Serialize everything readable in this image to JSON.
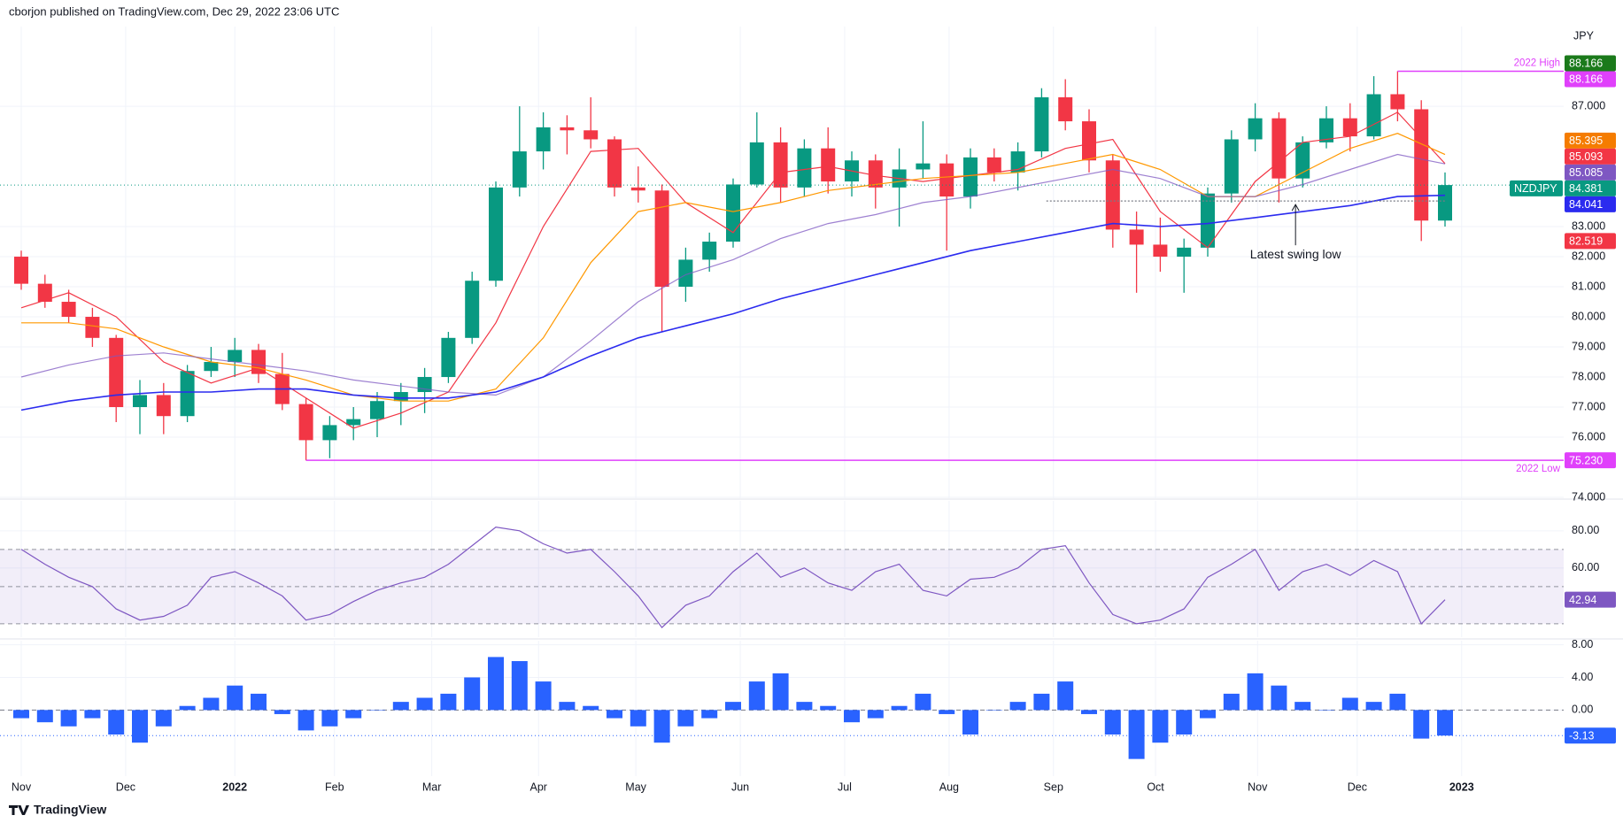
{
  "header": "cborjon published on TradingView.com, Dec 29, 2022 23:06 UTC",
  "footer": "TradingView",
  "chart_data": [
    {
      "type": "candlestick",
      "ylabel": "JPY",
      "grid": true,
      "up_color": "#089981",
      "down_color": "#f23645",
      "ylim": [
        73.97,
        89.65
      ],
      "yticks": [
        {
          "value": 87,
          "label": "87.000"
        },
        {
          "value": 83,
          "label": "83.000"
        },
        {
          "value": 82,
          "label": "82.000"
        },
        {
          "value": 81,
          "label": "81.000"
        },
        {
          "value": 80,
          "label": "80.000"
        },
        {
          "value": 79,
          "label": "79.000"
        },
        {
          "value": 78,
          "label": "78.000"
        },
        {
          "value": 77,
          "label": "77.000"
        },
        {
          "value": 76,
          "label": "76.000"
        },
        {
          "value": 74,
          "label": "74.000"
        }
      ],
      "open": [
        82.0,
        81.1,
        80.5,
        80.0,
        79.3,
        77.0,
        77.4,
        76.7,
        78.2,
        78.5,
        78.9,
        78.1,
        77.1,
        75.9,
        76.4,
        76.6,
        77.2,
        77.5,
        78.0,
        79.3,
        81.2,
        84.3,
        85.5,
        86.3,
        86.2,
        85.9,
        84.3,
        84.2,
        81.0,
        81.9,
        82.5,
        84.4,
        85.8,
        84.3,
        85.6,
        84.5,
        85.2,
        84.3,
        84.9,
        85.1,
        84.0,
        85.3,
        84.8,
        85.5,
        87.3,
        86.5,
        85.2,
        82.9,
        82.4,
        82.0,
        82.3,
        84.1,
        85.9,
        86.6,
        84.6,
        85.8,
        86.6,
        86.0,
        87.4,
        86.9,
        83.2
      ],
      "high": [
        82.2,
        81.4,
        80.9,
        80.3,
        79.4,
        77.9,
        77.8,
        78.4,
        79.0,
        79.3,
        79.1,
        78.8,
        77.3,
        76.7,
        77.0,
        77.5,
        77.8,
        78.3,
        79.5,
        81.5,
        84.5,
        87.0,
        86.8,
        86.7,
        87.3,
        86.0,
        85.0,
        84.4,
        82.3,
        82.8,
        84.6,
        86.8,
        86.3,
        85.9,
        86.3,
        85.5,
        85.4,
        85.6,
        86.5,
        85.4,
        85.6,
        85.6,
        85.8,
        87.6,
        87.9,
        86.9,
        85.4,
        83.5,
        83.3,
        82.6,
        84.3,
        86.2,
        87.1,
        86.8,
        86.0,
        87.0,
        87.1,
        88.0,
        88.166,
        87.2,
        84.8
      ],
      "low": [
        80.9,
        80.3,
        79.8,
        79.0,
        76.5,
        76.1,
        76.1,
        76.5,
        78.0,
        78.0,
        77.8,
        76.9,
        75.23,
        75.3,
        75.9,
        76.0,
        76.4,
        76.8,
        77.8,
        79.1,
        81.0,
        84.0,
        84.9,
        85.4,
        85.6,
        84.0,
        83.8,
        79.5,
        80.5,
        81.5,
        82.3,
        84.3,
        83.8,
        84.0,
        84.1,
        84.0,
        83.6,
        83.0,
        84.6,
        82.2,
        83.6,
        84.5,
        84.2,
        85.3,
        86.2,
        84.8,
        82.3,
        80.8,
        81.5,
        80.8,
        82.0,
        83.8,
        85.5,
        83.8,
        84.3,
        85.6,
        85.5,
        85.9,
        86.5,
        82.519,
        83.0
      ],
      "close": [
        81.1,
        80.5,
        80.0,
        79.3,
        77.0,
        77.4,
        76.7,
        78.2,
        78.5,
        78.9,
        78.1,
        77.1,
        75.9,
        76.4,
        76.6,
        77.2,
        77.5,
        78.0,
        79.3,
        81.2,
        84.3,
        85.5,
        86.3,
        86.2,
        85.9,
        84.3,
        84.2,
        81.0,
        81.9,
        82.5,
        84.4,
        85.8,
        84.3,
        85.6,
        84.5,
        85.2,
        84.3,
        84.9,
        85.1,
        84.0,
        85.3,
        84.8,
        85.5,
        87.3,
        86.5,
        85.2,
        82.9,
        82.4,
        82.0,
        82.3,
        84.1,
        85.9,
        86.6,
        84.6,
        85.8,
        86.6,
        86.0,
        87.4,
        86.9,
        83.2,
        84.381
      ],
      "ma_x": [
        0,
        2,
        4,
        6,
        8,
        10,
        12,
        14,
        16,
        18,
        20,
        22,
        24,
        26,
        28,
        30,
        32,
        34,
        36,
        38,
        40,
        42,
        44,
        46,
        48,
        50,
        52,
        54,
        56,
        58,
        60
      ],
      "series": [
        {
          "color": "#f23645",
          "values": [
            80.3,
            80.8,
            80.0,
            78.5,
            77.8,
            78.3,
            77.3,
            76.3,
            76.8,
            77.5,
            79.8,
            83.0,
            85.5,
            85.6,
            83.8,
            82.8,
            84.8,
            85.0,
            84.7,
            84.5,
            84.7,
            84.9,
            85.6,
            85.9,
            83.5,
            82.3,
            84.5,
            85.8,
            86.0,
            86.8,
            85.093
          ]
        },
        {
          "color": "#ff9800",
          "values": [
            79.8,
            79.8,
            79.6,
            79.0,
            78.5,
            78.3,
            77.9,
            77.4,
            77.2,
            77.2,
            77.6,
            79.3,
            81.8,
            83.5,
            83.8,
            83.5,
            83.8,
            84.2,
            84.4,
            84.6,
            84.7,
            84.8,
            85.1,
            85.4,
            84.9,
            84.0,
            84.0,
            84.8,
            85.6,
            86.1,
            85.395
          ]
        },
        {
          "color": "#7e57c2",
          "values": [
            78.0,
            78.4,
            78.7,
            78.8,
            78.6,
            78.4,
            78.2,
            77.9,
            77.7,
            77.5,
            77.4,
            78.0,
            79.2,
            80.5,
            81.4,
            81.9,
            82.6,
            83.1,
            83.4,
            83.8,
            84.0,
            84.3,
            84.6,
            84.9,
            84.6,
            84.0,
            84.0,
            84.4,
            84.9,
            85.4,
            85.085
          ]
        },
        {
          "color": "#2b2bef",
          "values": [
            76.9,
            77.2,
            77.4,
            77.5,
            77.5,
            77.6,
            77.6,
            77.4,
            77.3,
            77.3,
            77.5,
            78.0,
            78.7,
            79.3,
            79.7,
            80.1,
            80.6,
            81.0,
            81.4,
            81.8,
            82.2,
            82.5,
            82.8,
            83.1,
            83.0,
            83.1,
            83.3,
            83.5,
            83.7,
            84.0,
            84.041
          ]
        }
      ],
      "levels": [
        {
          "name": "2022 High",
          "value": 88.166,
          "from": 58,
          "color": "#e040fb",
          "style": "solid"
        },
        {
          "name": "2022 Low",
          "value": 75.23,
          "from": 12,
          "color": "#e040fb",
          "style": "solid"
        },
        {
          "value": 83.85,
          "from": 43.2,
          "color": "#787b86",
          "style": "dotted",
          "annotation": "Latest swing low",
          "annotation_x": 53.7
        }
      ],
      "last_price_color": "#089981",
      "price_labels": [
        {
          "value": 88.166,
          "label": "88.166",
          "color": "#1b7a1b"
        },
        {
          "value": 88.166,
          "label": "88.166",
          "color": "#e040fb"
        },
        {
          "value": 85.395,
          "label": "85.395",
          "color": "#f57c00"
        },
        {
          "value": 85.093,
          "label": "85.093",
          "color": "#f23645"
        },
        {
          "value": 85.085,
          "label": "85.085",
          "color": "#7e57c2"
        },
        {
          "value": 84.381,
          "label": "84.381",
          "color": "#089981",
          "tag": "NZDJPY"
        },
        {
          "value": 84.041,
          "label": "84.041",
          "color": "#2b2bef"
        },
        {
          "value": 82.519,
          "label": "82.519",
          "color": "#f23645"
        },
        {
          "value": 75.23,
          "label": "75.230",
          "color": "#e040fb"
        }
      ]
    },
    {
      "type": "line",
      "grid": true,
      "color": "#7e57c2",
      "band_fill": "rgba(126,87,194,0.1)",
      "ylim": [
        22.8,
        96.1
      ],
      "yticks": [
        {
          "value": 80,
          "label": "80.00"
        },
        {
          "value": 60,
          "label": "60.00"
        }
      ],
      "bands": [
        70,
        50,
        30
      ],
      "values": [
        70,
        62,
        55,
        50,
        38,
        32,
        34,
        40,
        55,
        58,
        52,
        45,
        32,
        35,
        42,
        48,
        52,
        55,
        62,
        72,
        82,
        80,
        73,
        68,
        70,
        58,
        45,
        28,
        40,
        45,
        58,
        68,
        55,
        60,
        52,
        48,
        58,
        62,
        48,
        45,
        54,
        55,
        60,
        70,
        72,
        52,
        35,
        30,
        32,
        38,
        55,
        62,
        70,
        48,
        58,
        62,
        56,
        64,
        58,
        30,
        42.94
      ]
    },
    {
      "type": "bar",
      "grid": true,
      "color": "#2962ff",
      "ylim": [
        -8.1,
        8.5
      ],
      "yticks": [
        {
          "value": 8,
          "label": "8.00"
        },
        {
          "value": 4,
          "label": "4.00"
        },
        {
          "value": 0,
          "label": "0.00"
        }
      ],
      "values": [
        -1,
        -1.5,
        -2,
        -1,
        -3,
        -4,
        -2,
        0.5,
        1.5,
        3,
        2,
        -0.5,
        -2.5,
        -2,
        -1,
        0,
        1,
        1.5,
        2,
        4,
        6.5,
        6,
        3.5,
        1,
        0.5,
        -1,
        -2,
        -4,
        -2,
        -1,
        1,
        3.5,
        4.5,
        1,
        0.5,
        -1.5,
        -1,
        0.5,
        2,
        -0.5,
        -3,
        0,
        1,
        2,
        3.5,
        -0.5,
        -3,
        -6,
        -4,
        -3,
        -1,
        2,
        4.5,
        3,
        1,
        0,
        1.5,
        1,
        2,
        -3.5,
        -3.13
      ],
      "xticks": [
        {
          "value": 0,
          "label": "Nov"
        },
        {
          "value": 4.4,
          "label": "Dec"
        },
        {
          "value": 9.0,
          "label": "2022"
        },
        {
          "value": 13.2,
          "label": "Feb"
        },
        {
          "value": 17.3,
          "label": "Mar"
        },
        {
          "value": 21.8,
          "label": "Apr"
        },
        {
          "value": 25.9,
          "label": "May"
        },
        {
          "value": 30.3,
          "label": "Jun"
        },
        {
          "value": 34.7,
          "label": "Jul"
        },
        {
          "value": 39.1,
          "label": "Aug"
        },
        {
          "value": 43.5,
          "label": "Sep"
        },
        {
          "value": 47.8,
          "label": "Oct"
        },
        {
          "value": 52.1,
          "label": "Nov"
        },
        {
          "value": 56.3,
          "label": "Dec"
        },
        {
          "value": 60.7,
          "label": "2023"
        }
      ]
    }
  ]
}
